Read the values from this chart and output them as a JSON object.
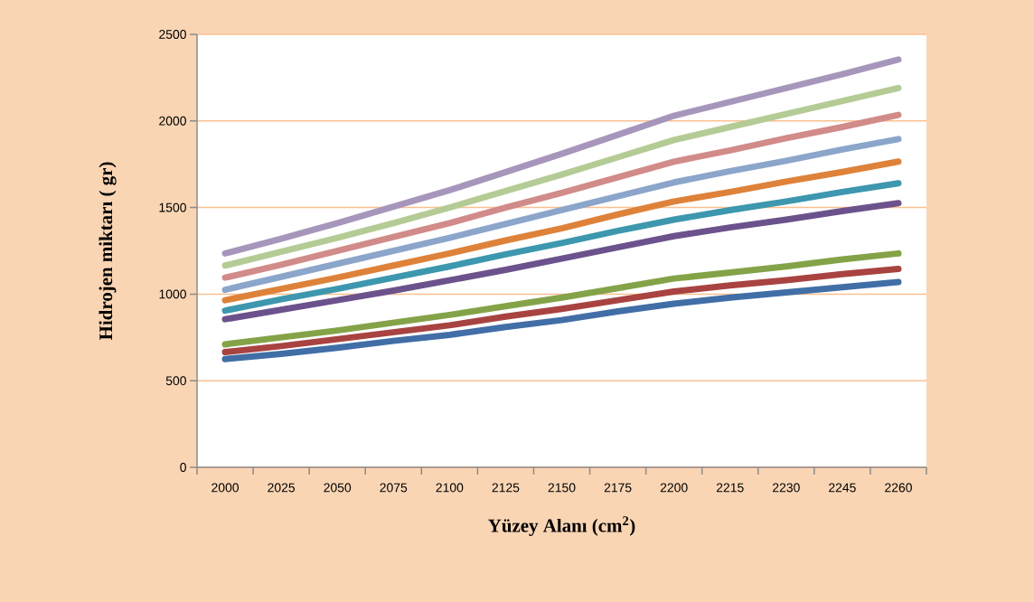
{
  "chart_data": {
    "type": "line",
    "xlabel": "Yüzey Alanı (cm$^{2}$)",
    "ylabel": "Hidrojen miktarı ( gr)",
    "categories": [
      "2000",
      "2025",
      "2050",
      "2075",
      "2100",
      "2125",
      "2150",
      "2175",
      "2200",
      "2215",
      "2230",
      "2245",
      "2260"
    ],
    "series": [
      {
        "color": "#416ea6",
        "values": [
          625,
          655,
          690,
          730,
          765,
          810,
          850,
          900,
          945,
          980,
          1010,
          1040,
          1070
        ]
      },
      {
        "color": "#a84341",
        "values": [
          665,
          700,
          740,
          780,
          820,
          870,
          915,
          965,
          1015,
          1050,
          1080,
          1115,
          1145
        ]
      },
      {
        "color": "#84a348",
        "values": [
          710,
          750,
          790,
          835,
          880,
          930,
          980,
          1035,
          1090,
          1125,
          1160,
          1200,
          1235
        ]
      },
      {
        "color": "#6c528c",
        "values": [
          855,
          910,
          965,
          1020,
          1080,
          1140,
          1205,
          1270,
          1335,
          1385,
          1430,
          1480,
          1525
        ]
      },
      {
        "color": "#3d97ae",
        "values": [
          905,
          970,
          1030,
          1095,
          1160,
          1230,
          1295,
          1365,
          1430,
          1485,
          1535,
          1590,
          1640
        ]
      },
      {
        "color": "#de823a",
        "values": [
          965,
          1030,
          1095,
          1165,
          1235,
          1310,
          1380,
          1460,
          1535,
          1590,
          1650,
          1705,
          1765
        ]
      },
      {
        "color": "#8ba5cb",
        "values": [
          1025,
          1100,
          1175,
          1250,
          1325,
          1405,
          1485,
          1565,
          1645,
          1710,
          1770,
          1835,
          1895
        ]
      },
      {
        "color": "#d18b89",
        "values": [
          1095,
          1170,
          1250,
          1330,
          1410,
          1500,
          1585,
          1675,
          1765,
          1830,
          1900,
          1965,
          2035
        ]
      },
      {
        "color": "#b5cb95",
        "values": [
          1165,
          1245,
          1325,
          1410,
          1500,
          1595,
          1690,
          1790,
          1890,
          1965,
          2040,
          2115,
          2190
        ]
      },
      {
        "color": "#a796bb",
        "values": [
          1235,
          1320,
          1410,
          1505,
          1600,
          1705,
          1810,
          1920,
          2030,
          2110,
          2190,
          2270,
          2355
        ]
      }
    ],
    "ylim": [
      0,
      2500
    ],
    "yticks": [
      0,
      500,
      1000,
      1500,
      2000,
      2500
    ],
    "grid": "y",
    "line_style": "solid"
  }
}
